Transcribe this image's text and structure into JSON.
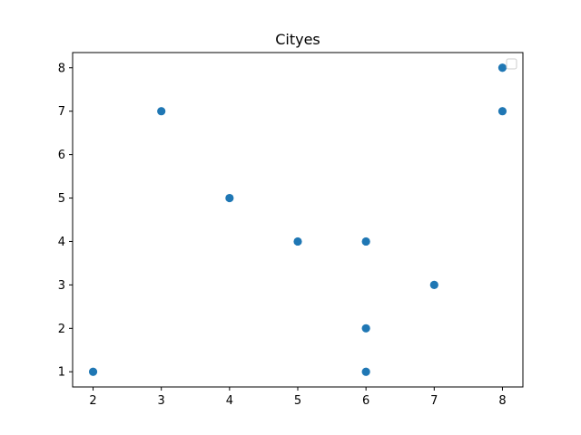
{
  "chart_data": {
    "type": "scatter",
    "title": "Cityes",
    "xlabel": "",
    "ylabel": "",
    "x": [
      2,
      3,
      4,
      5,
      6,
      6,
      6,
      7,
      8,
      8
    ],
    "y": [
      1,
      7,
      5,
      4,
      4,
      2,
      1,
      3,
      8,
      7
    ],
    "xlim": [
      1.7,
      8.3
    ],
    "ylim": [
      0.65,
      8.35
    ],
    "xticks": [
      2,
      3,
      4,
      5,
      6,
      7,
      8
    ],
    "yticks": [
      1,
      2,
      3,
      4,
      5,
      6,
      7,
      8
    ],
    "grid": false,
    "legend": {
      "placement": "top-right",
      "entries": []
    },
    "colors": {
      "marker": "#1f77b4",
      "axes": "#000000",
      "background": "#ffffff"
    }
  }
}
